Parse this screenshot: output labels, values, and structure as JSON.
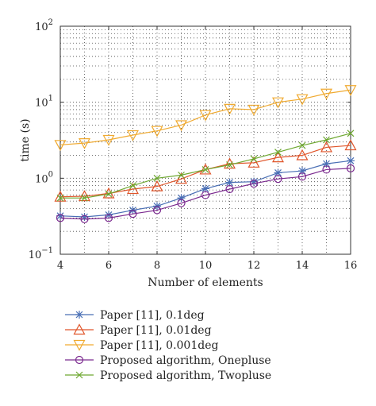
{
  "chart_data": {
    "type": "line",
    "xlabel": "Number of elements",
    "ylabel": "time (s)",
    "xlim": [
      4,
      16
    ],
    "ylim": [
      0.1,
      100
    ],
    "yscale": "log",
    "grid": "dotted",
    "x_ticks": [
      "4",
      "6",
      "8",
      "10",
      "12",
      "14",
      "16"
    ],
    "y_ticks": [
      {
        "base": "10",
        "exp": "−1",
        "value": 0.1
      },
      {
        "base": "10",
        "exp": "0",
        "value": 1
      },
      {
        "base": "10",
        "exp": "1",
        "value": 10
      },
      {
        "base": "10",
        "exp": "2",
        "value": 100
      }
    ],
    "legend_placement": "below",
    "x": [
      4,
      5,
      6,
      7,
      8,
      9,
      10,
      11,
      12,
      13,
      14,
      15,
      16
    ],
    "series": [
      {
        "name": "Paper [11], 0.1deg",
        "color": "#4a6fb5",
        "marker": "asterisk",
        "values": [
          0.32,
          0.31,
          0.33,
          0.38,
          0.43,
          0.55,
          0.73,
          0.88,
          0.9,
          1.18,
          1.25,
          1.55,
          1.7
        ]
      },
      {
        "name": "Paper [11], 0.01deg",
        "color": "#e0552a",
        "marker": "triangle-up",
        "values": [
          0.57,
          0.58,
          0.63,
          0.72,
          0.78,
          0.98,
          1.3,
          1.55,
          1.6,
          1.88,
          2.0,
          2.55,
          2.7
        ]
      },
      {
        "name": "Paper [11], 0.001deg",
        "color": "#f0aa30",
        "marker": "triangle-down",
        "values": [
          2.75,
          2.9,
          3.2,
          3.7,
          4.2,
          5.0,
          6.8,
          8.2,
          8.0,
          10.0,
          11.0,
          13.0,
          14.5
        ]
      },
      {
        "name": "Proposed algorithm, Onepluse",
        "color": "#7b2a8f",
        "marker": "circle",
        "values": [
          0.3,
          0.29,
          0.3,
          0.34,
          0.38,
          0.47,
          0.6,
          0.72,
          0.85,
          0.98,
          1.05,
          1.3,
          1.35
        ]
      },
      {
        "name": "Proposed algorithm, Twopluse",
        "color": "#6ea831",
        "marker": "x",
        "values": [
          0.55,
          0.55,
          0.62,
          0.8,
          1.0,
          1.1,
          1.3,
          1.5,
          1.8,
          2.2,
          2.7,
          3.2,
          3.9
        ]
      }
    ]
  }
}
